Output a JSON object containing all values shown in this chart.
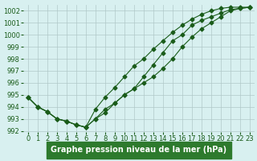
{
  "title": "Graphe pression niveau de la mer (hPa)",
  "x": [
    0,
    1,
    2,
    3,
    4,
    5,
    6,
    7,
    8,
    9,
    10,
    11,
    12,
    13,
    14,
    15,
    16,
    17,
    18,
    19,
    20,
    21,
    22,
    23
  ],
  "line1": [
    994.8,
    994.0,
    993.6,
    993.0,
    992.8,
    992.5,
    992.3,
    993.0,
    993.8,
    994.3,
    995.0,
    995.5,
    996.0,
    996.5,
    997.2,
    998.0,
    999.0,
    999.8,
    1000.5,
    1001.0,
    1001.5,
    1002.0,
    1002.2,
    1002.3
  ],
  "line2": [
    994.8,
    994.0,
    993.6,
    993.0,
    992.8,
    992.5,
    992.3,
    993.8,
    994.8,
    995.6,
    996.5,
    997.4,
    998.0,
    998.8,
    999.5,
    1000.2,
    1000.8,
    1001.3,
    1001.7,
    1002.0,
    1002.2,
    1002.3,
    1002.3,
    1002.3
  ],
  "line3": [
    994.8,
    994.0,
    993.6,
    993.0,
    992.8,
    992.5,
    992.3,
    993.0,
    993.5,
    994.3,
    995.0,
    995.5,
    996.5,
    997.5,
    998.5,
    999.5,
    1000.0,
    1000.8,
    1001.2,
    1001.5,
    1001.8,
    1002.1,
    1002.2,
    1002.3
  ],
  "ylim": [
    992,
    1002.5
  ],
  "yticks": [
    992,
    993,
    994,
    995,
    996,
    997,
    998,
    999,
    1000,
    1001,
    1002
  ],
  "line_color": "#1a5c1a",
  "bg_color": "#d8f0f0",
  "grid_color": "#b0c8c8",
  "title_bg": "#2d7a2d",
  "title_fg": "#ffffff",
  "tick_fontsize": 6,
  "title_fontsize": 7
}
